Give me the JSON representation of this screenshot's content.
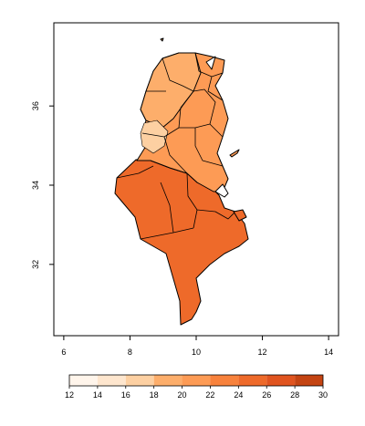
{
  "map": {
    "x_axis": {
      "ticks": [
        6,
        8,
        10,
        12,
        14
      ],
      "range": [
        5.7,
        14.3
      ]
    },
    "y_axis": {
      "ticks": [
        32,
        34,
        36
      ],
      "range": [
        30.2,
        38.1
      ]
    }
  },
  "legend": {
    "breaks": [
      12,
      14,
      16,
      18,
      20,
      22,
      24,
      26,
      28,
      30
    ],
    "colors": [
      "#FFF5EB",
      "#FEE6CE",
      "#FDD0A2",
      "#FDAE6B",
      "#FD9B55",
      "#F8823C",
      "#EE6A2A",
      "#E0541F",
      "#C44412",
      "#7F2704"
    ]
  }
}
